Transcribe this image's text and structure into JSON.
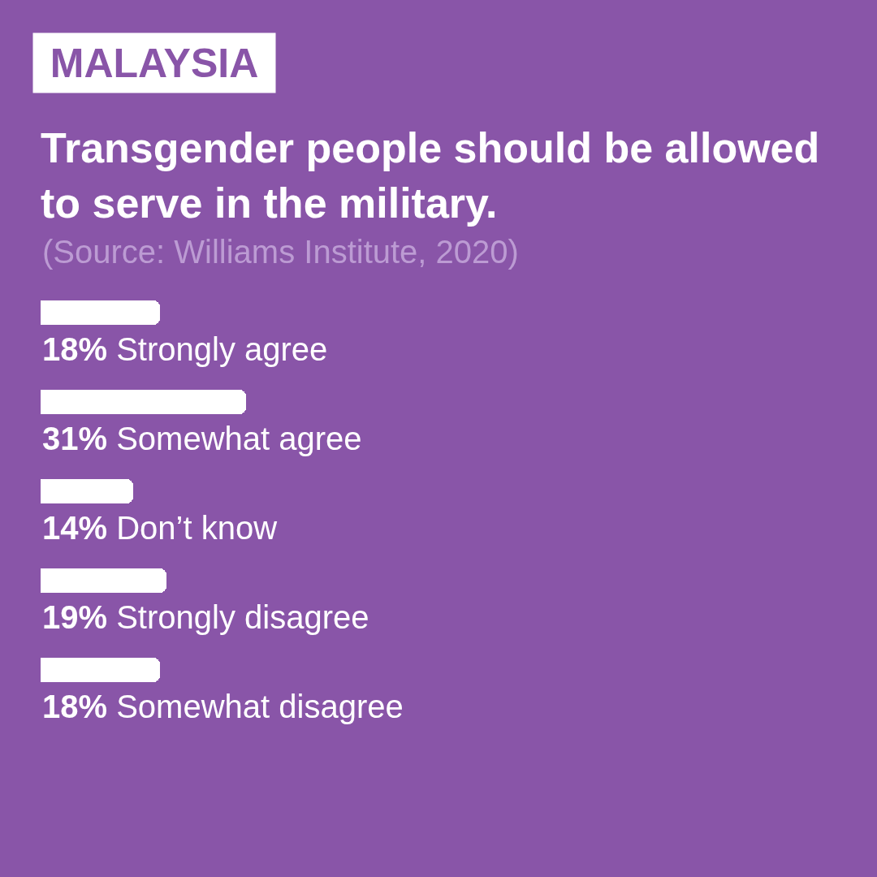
{
  "chart_data": {
    "type": "bar",
    "orientation": "horizontal",
    "subtitle": "MALAYSIA",
    "title": "Transgender people should be allowed to serve in the military.",
    "annotations": [
      "(Source: Williams Institute, 2020)"
    ],
    "categories": [
      "Strongly agree",
      "Somewhat agree",
      "Don’t know",
      "Strongly disagree",
      "Somewhat disagree"
    ],
    "values": [
      18,
      31,
      14,
      19,
      18
    ],
    "value_labels": [
      "18%",
      "31%",
      "14%",
      "19%",
      "18%"
    ],
    "color": "#ffffff",
    "tick_labels": false
  }
}
